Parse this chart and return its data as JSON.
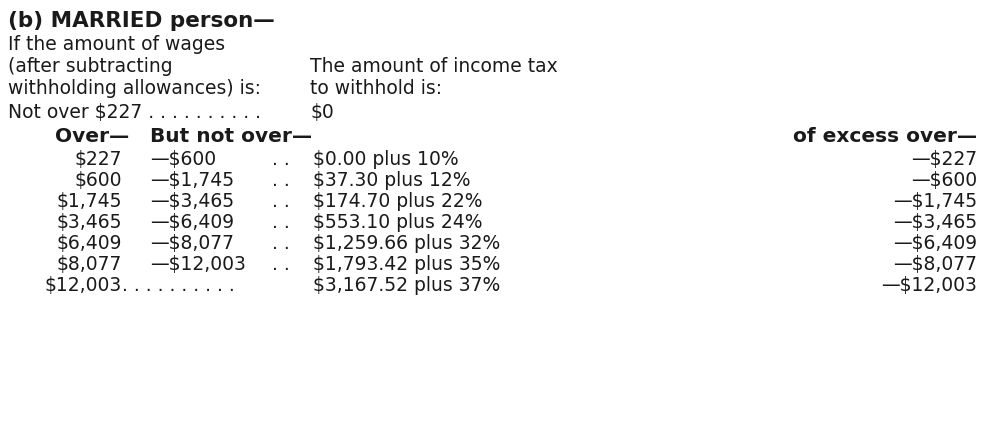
{
  "title": "(b) MARRIED person—",
  "header_left_line1": "If the amount of wages",
  "header_left_line2": "(after subtracting",
  "header_left_line3": "withholding allowances) is:",
  "header_right_line1": "The amount of income tax",
  "header_right_line2": "to withhold is:",
  "not_over_text": "Not over $227 . . . . . . . . . .",
  "not_over_value": "$0",
  "col_header_over": "Over—",
  "col_header_but": "But not over—",
  "col_header_excess": "of excess over—",
  "rows": [
    [
      "$227",
      "—$600",
      ". .",
      "$0.00 plus 10%",
      "—$227"
    ],
    [
      "$600",
      "—$1,745",
      ". .",
      "$37.30 plus 12%",
      "—$600"
    ],
    [
      "$1,745",
      "—$3,465",
      ". .",
      "$174.70 plus 22%",
      "—$1,745"
    ],
    [
      "$3,465",
      "—$6,409",
      ". .",
      "$553.10 plus 24%",
      "—$3,465"
    ],
    [
      "$6,409",
      "—$8,077",
      ". .",
      "$1,259.66 plus 32%",
      "—$6,409"
    ],
    [
      "$8,077",
      "—$12,003",
      ". .",
      "$1,793.42 plus 35%",
      "—$8,077"
    ],
    [
      "$12,003",
      "",
      ". . . . . . . . . .",
      "$3,167.52 plus 37%",
      "—$12,003"
    ]
  ],
  "background_color": "#ffffff",
  "text_color": "#1a1a1a",
  "font_size_title": 15.5,
  "font_size_body": 13.5,
  "font_size_col_header": 14.5
}
